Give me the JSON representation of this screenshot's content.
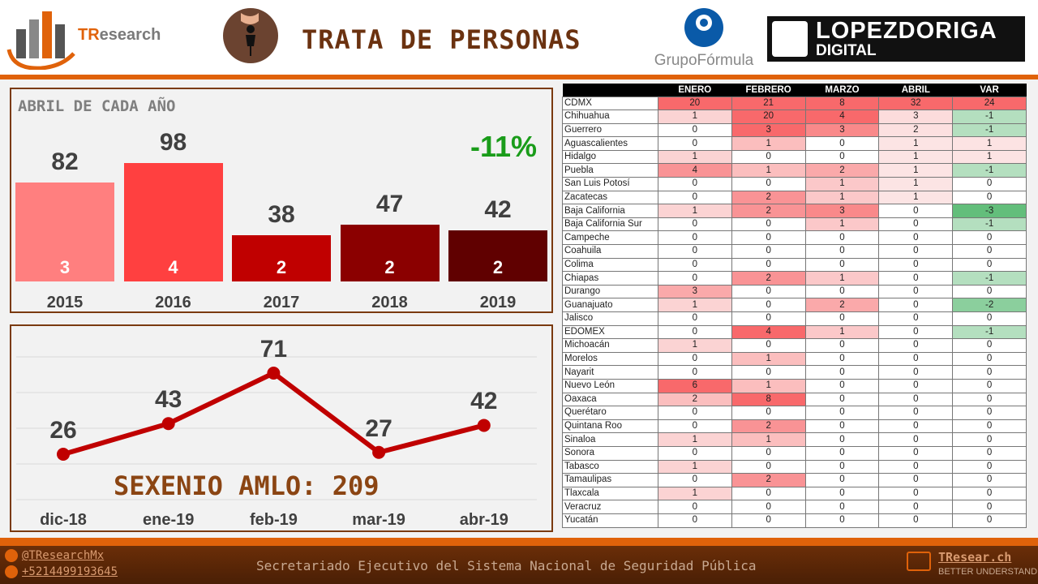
{
  "header": {
    "brand": "TResearch",
    "brand_prefix": "TR",
    "brand_rest": "esearch",
    "title": "TRATA DE PERSONAS",
    "partner1": "GrupoFórmula",
    "partner2_line1": "LOPEZDORIGA",
    "partner2_line2": "DIGITAL"
  },
  "colors": {
    "accent": "#e0620a",
    "title": "#6b3210",
    "positive": "#1a9c1a"
  },
  "chart_data": [
    {
      "type": "bar",
      "title": "ABRIL DE CADA AÑO",
      "categories": [
        "2015",
        "2016",
        "2017",
        "2018",
        "2019"
      ],
      "values": [
        82,
        98,
        38,
        47,
        42
      ],
      "inner_labels": [
        "3",
        "4",
        "2",
        "2",
        "2"
      ],
      "colors": [
        "#ff7f7f",
        "#ff4040",
        "#c00000",
        "#8b0000",
        "#600000"
      ],
      "annotation": "-11%",
      "ylim": [
        0,
        100
      ]
    },
    {
      "type": "line",
      "categories": [
        "dic-18",
        "ene-19",
        "feb-19",
        "mar-19",
        "abr-19"
      ],
      "values": [
        26,
        43,
        71,
        27,
        42
      ],
      "color": "#c00000",
      "grid": true,
      "annotation": "SEXENIO AMLO: 209"
    }
  ],
  "table": {
    "headers": [
      "",
      "ENERO",
      "FEBRERO",
      "MARZO",
      "ABRIL",
      "VAR"
    ],
    "rows": [
      [
        "CDMX",
        20,
        21,
        8,
        32,
        24
      ],
      [
        "Chihuahua",
        1,
        20,
        4,
        3,
        -1
      ],
      [
        "Guerrero",
        0,
        3,
        3,
        2,
        -1
      ],
      [
        "Aguascalientes",
        0,
        1,
        0,
        1,
        1
      ],
      [
        "Hidalgo",
        1,
        0,
        0,
        1,
        1
      ],
      [
        "Puebla",
        4,
        1,
        2,
        1,
        -1
      ],
      [
        "San Luis Potosí",
        0,
        0,
        1,
        1,
        0
      ],
      [
        "Zacatecas",
        0,
        2,
        1,
        1,
        0
      ],
      [
        "Baja California",
        1,
        2,
        3,
        0,
        -3
      ],
      [
        "Baja California Sur",
        0,
        0,
        1,
        0,
        -1
      ],
      [
        "Campeche",
        0,
        0,
        0,
        0,
        0
      ],
      [
        "Coahuila",
        0,
        0,
        0,
        0,
        0
      ],
      [
        "Colima",
        0,
        0,
        0,
        0,
        0
      ],
      [
        "Chiapas",
        0,
        2,
        1,
        0,
        -1
      ],
      [
        "Durango",
        3,
        0,
        0,
        0,
        0
      ],
      [
        "Guanajuato",
        1,
        0,
        2,
        0,
        -2
      ],
      [
        "Jalisco",
        0,
        0,
        0,
        0,
        0
      ],
      [
        "EDOMEX",
        0,
        4,
        1,
        0,
        -1
      ],
      [
        "Michoacán",
        1,
        0,
        0,
        0,
        0
      ],
      [
        "Morelos",
        0,
        1,
        0,
        0,
        0
      ],
      [
        "Nayarit",
        0,
        0,
        0,
        0,
        0
      ],
      [
        "Nuevo León",
        6,
        1,
        0,
        0,
        0
      ],
      [
        "Oaxaca",
        2,
        8,
        0,
        0,
        0
      ],
      [
        "Querétaro",
        0,
        0,
        0,
        0,
        0
      ],
      [
        "Quintana Roo",
        0,
        2,
        0,
        0,
        0
      ],
      [
        "Sinaloa",
        1,
        1,
        0,
        0,
        0
      ],
      [
        "Sonora",
        0,
        0,
        0,
        0,
        0
      ],
      [
        "Tabasco",
        1,
        0,
        0,
        0,
        0
      ],
      [
        "Tamaulipas",
        0,
        2,
        0,
        0,
        0
      ],
      [
        "Tlaxcala",
        1,
        0,
        0,
        0,
        0
      ],
      [
        "Veracruz",
        0,
        0,
        0,
        0,
        0
      ],
      [
        "Yucatán",
        0,
        0,
        0,
        0,
        0
      ]
    ]
  },
  "footer": {
    "twitter": "@TResearchMx",
    "phone": "+5214499193645",
    "source": "Secretariado Ejecutivo del Sistema Nacional de Seguridad Pública",
    "site": "TResear.ch",
    "tagline": "BETTER UNDERSTAND"
  }
}
